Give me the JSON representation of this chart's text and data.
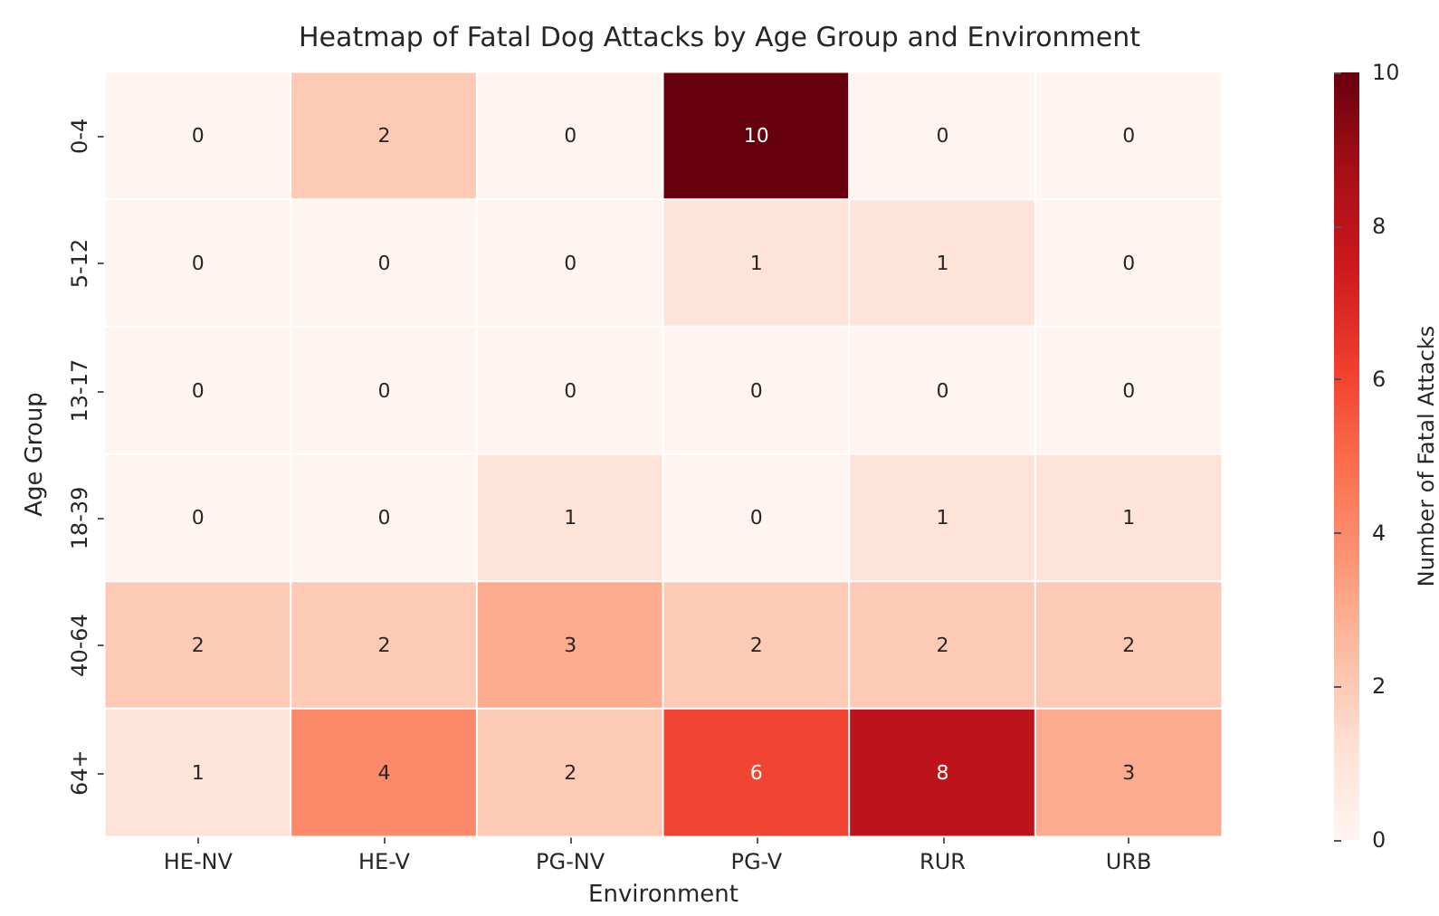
{
  "chart_data": {
    "type": "heatmap",
    "title": "Heatmap of Fatal Dog Attacks by Age Group and Environment",
    "xlabel": "Environment",
    "ylabel": "Age Group",
    "clabel": "Number of Fatal Attacks",
    "categories": [
      "HE-NV",
      "HE-V",
      "PG-NV",
      "PG-V",
      "RUR",
      "URB"
    ],
    "y_categories": [
      "0-4",
      "5-12",
      "13-17",
      "18-39",
      "40-64",
      "64+"
    ],
    "cells": [
      [
        0,
        2,
        0,
        10,
        0,
        0
      ],
      [
        0,
        0,
        0,
        1,
        1,
        0
      ],
      [
        0,
        0,
        0,
        0,
        0,
        0
      ],
      [
        0,
        0,
        1,
        0,
        1,
        1
      ],
      [
        2,
        2,
        3,
        2,
        2,
        2
      ],
      [
        1,
        4,
        2,
        6,
        8,
        3
      ]
    ],
    "clim": [
      0,
      10
    ],
    "cticks": [
      0,
      2,
      4,
      6,
      8,
      10
    ],
    "data_labels": true
  }
}
